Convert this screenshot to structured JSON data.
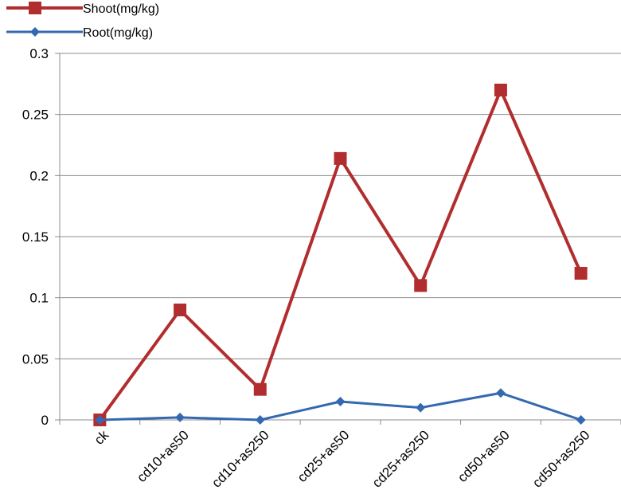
{
  "chart_data": {
    "type": "line",
    "title": "",
    "xlabel": "",
    "ylabel": "",
    "categories": [
      "ck",
      "cd10+as50",
      "cd10+as250",
      "cd25+as50",
      "cd25+as250",
      "cd50+as50",
      "cd50+as250"
    ],
    "ylim": [
      0,
      0.3
    ],
    "yticks": [
      "0",
      "0.05",
      "0.1",
      "0.15",
      "0.2",
      "0.25",
      "0.3"
    ],
    "grid": "horizontal",
    "legend_position": "top-left",
    "series": [
      {
        "name": "Shoot(mg/kg)",
        "color": "#b22d2d",
        "marker": "square",
        "values": [
          0,
          0.09,
          0.025,
          0.214,
          0.11,
          0.27,
          0.12
        ]
      },
      {
        "name": "Root(mg/kg)",
        "color": "#3468b0",
        "marker": "diamond",
        "values": [
          0,
          0.002,
          0,
          0.015,
          0.01,
          0.022,
          0
        ]
      }
    ]
  }
}
